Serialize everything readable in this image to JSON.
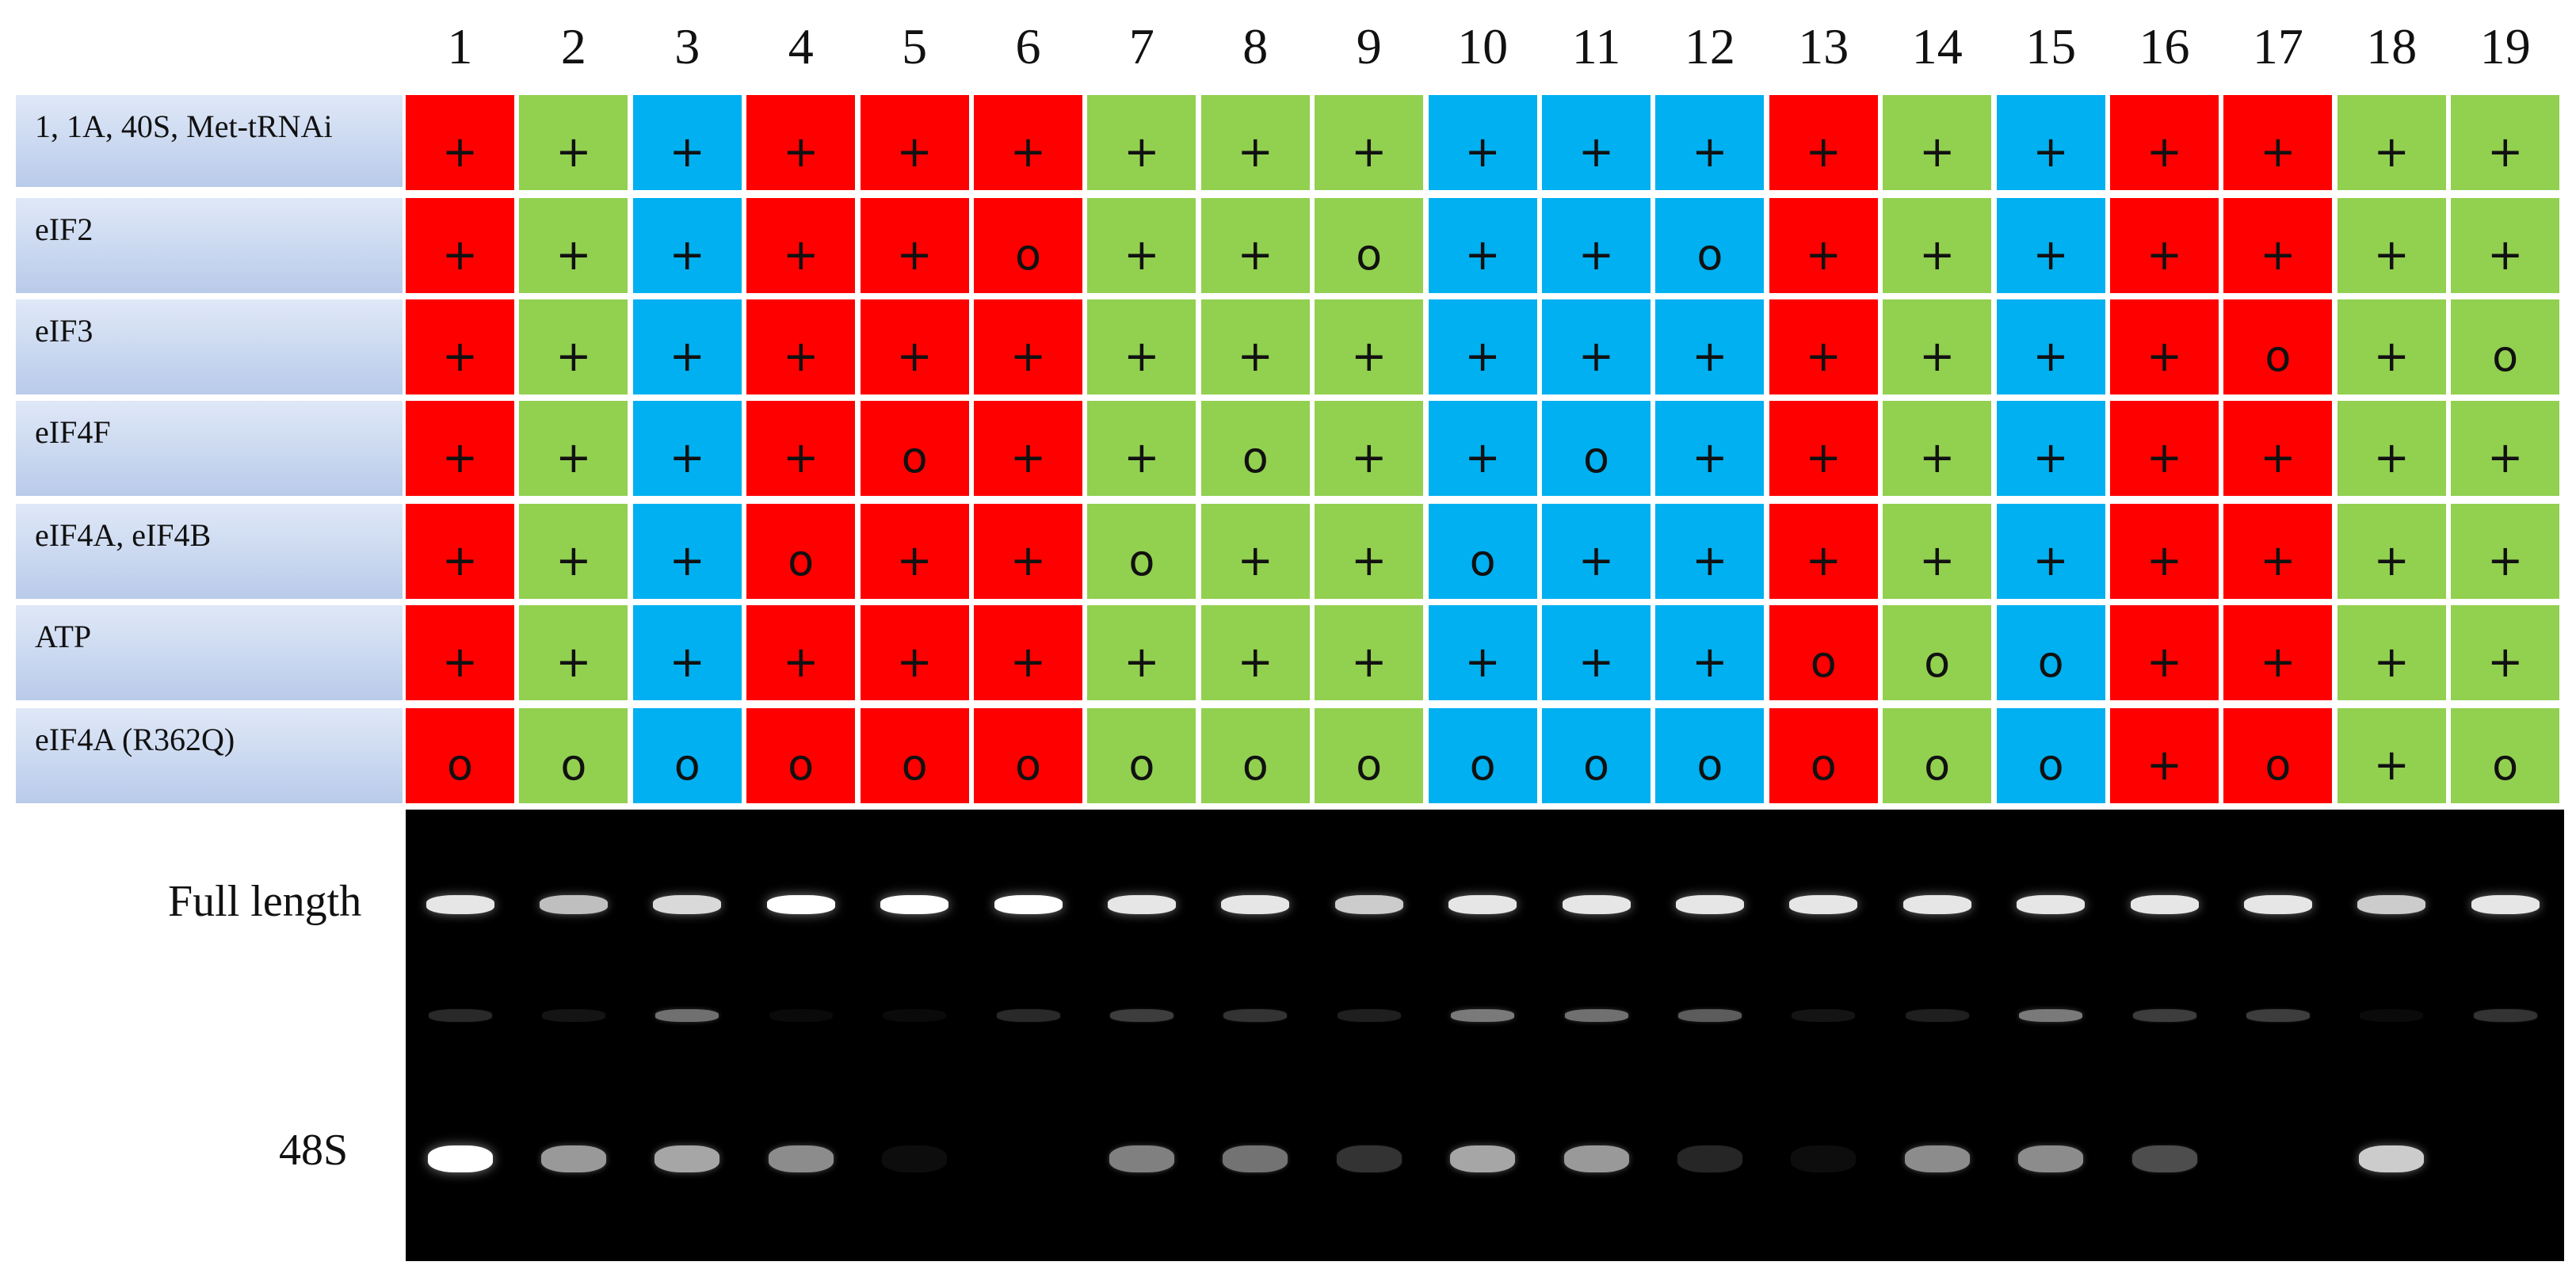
{
  "lanes": [
    "1",
    "2",
    "3",
    "4",
    "5",
    "6",
    "7",
    "8",
    "9",
    "10",
    "11",
    "12",
    "13",
    "14",
    "15",
    "16",
    "17",
    "18",
    "19"
  ],
  "lane_colors": [
    "red",
    "green",
    "blue",
    "red",
    "red",
    "red",
    "green",
    "green",
    "green",
    "blue",
    "blue",
    "blue",
    "red",
    "green",
    "blue",
    "red",
    "red",
    "green",
    "green"
  ],
  "palette": {
    "red": "#ff0000",
    "green": "#92d050",
    "blue": "#00b0f0"
  },
  "rows": [
    {
      "label": "1, 1A, 40S, Met-tRNAi",
      "values": [
        "+",
        "+",
        "+",
        "+",
        "+",
        "+",
        "+",
        "+",
        "+",
        "+",
        "+",
        "+",
        "+",
        "+",
        "+",
        "+",
        "+",
        "+",
        "+"
      ]
    },
    {
      "label": "eIF2",
      "values": [
        "+",
        "+",
        "+",
        "+",
        "+",
        "o",
        "+",
        "+",
        "o",
        "+",
        "+",
        "o",
        "+",
        "+",
        "+",
        "+",
        "+",
        "+",
        "+"
      ]
    },
    {
      "label": "eIF3",
      "values": [
        "+",
        "+",
        "+",
        "+",
        "+",
        "+",
        "+",
        "+",
        "+",
        "+",
        "+",
        "+",
        "+",
        "+",
        "+",
        "+",
        "o",
        "+",
        "o"
      ]
    },
    {
      "label": "eIF4F",
      "values": [
        "+",
        "+",
        "+",
        "+",
        "o",
        "+",
        "+",
        "o",
        "+",
        "+",
        "o",
        "+",
        "+",
        "+",
        "+",
        "+",
        "+",
        "+",
        "+"
      ]
    },
    {
      "label": "eIF4A, eIF4B",
      "values": [
        "+",
        "+",
        "+",
        "o",
        "+",
        "+",
        "o",
        "+",
        "+",
        "o",
        "+",
        "+",
        "+",
        "+",
        "+",
        "+",
        "+",
        "+",
        "+"
      ]
    },
    {
      "label": "ATP",
      "values": [
        "+",
        "+",
        "+",
        "+",
        "+",
        "+",
        "+",
        "+",
        "+",
        "+",
        "+",
        "+",
        "o",
        "o",
        "o",
        "+",
        "+",
        "+",
        "+"
      ]
    },
    {
      "label": "eIF4A (R362Q)",
      "values": [
        "o",
        "o",
        "o",
        "o",
        "o",
        "o",
        "o",
        "o",
        "o",
        "o",
        "o",
        "o",
        "o",
        "o",
        "o",
        "+",
        "o",
        "+",
        "o"
      ]
    }
  ],
  "gel": {
    "band_labels": {
      "full_length": "Full length",
      "p48s": "48S"
    },
    "full_length_intensity": [
      0.9,
      0.75,
      0.85,
      1,
      1,
      1,
      0.9,
      0.9,
      0.8,
      0.9,
      0.9,
      0.9,
      0.9,
      0.9,
      0.9,
      0.9,
      0.9,
      0.8,
      0.9
    ],
    "middle_band_intensity": [
      0.2,
      0.1,
      0.55,
      0.05,
      0.05,
      0.2,
      0.3,
      0.25,
      0.15,
      0.6,
      0.55,
      0.45,
      0.1,
      0.15,
      0.6,
      0.3,
      0.3,
      0.05,
      0.25
    ],
    "p48s_intensity": [
      1,
      0.6,
      0.65,
      0.55,
      0.05,
      0,
      0.5,
      0.45,
      0.2,
      0.65,
      0.6,
      0.15,
      0.05,
      0.55,
      0.55,
      0.3,
      0,
      0.8,
      0
    ]
  }
}
